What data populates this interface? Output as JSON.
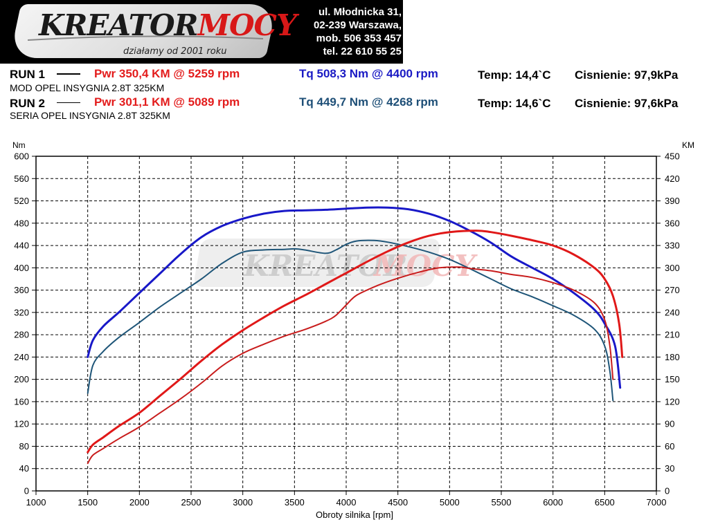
{
  "logo": {
    "brand_part1": "KREATOR",
    "brand_part2": "MOCY",
    "tagline": "działamy od 2001 roku"
  },
  "contact": {
    "line1": "ul. Młodnicka 31,",
    "line2": "02-239  Warszawa,",
    "line3": "mob.  506 353 457",
    "line4": "tel.  22 610 55 25"
  },
  "runs": [
    {
      "label": "RUN 1",
      "pwr": "Pwr  350,4 KM @ 5259 rpm",
      "tq": "Tq 508,3 Nm @ 4400 rpm",
      "temp": "Temp: 14,4`C",
      "pressure": "Cisnienie: 97,9kPa",
      "description": "MOD OPEL INSYGNIA 2.8T 325KM"
    },
    {
      "label": "RUN 2",
      "pwr": "Pwr  301,1 KM @ 5089 rpm",
      "tq": "Tq 449,7 Nm @ 4268 rpm",
      "temp": "Temp: 14,6`C",
      "pressure": "Cisnienie: 97,6kPa",
      "description": "SERIA OPEL INSYGNIA 2.8T 325KM"
    }
  ],
  "colors": {
    "run1_power": "#e01818",
    "run2_power": "#c81c1c",
    "run1_torque": "#1818c8",
    "run2_torque": "#1e5578",
    "grid": "#000000"
  },
  "chart_data": {
    "type": "line",
    "xlabel": "Obroty silnika [rpm]",
    "ylabel_left": "Nm",
    "ylabel_right": "KM",
    "xlim": [
      1000,
      7000
    ],
    "ylim_left": [
      0,
      600
    ],
    "ylim_right": [
      0,
      450
    ],
    "x_ticks": [
      1000,
      1500,
      2000,
      2500,
      3000,
      3500,
      4000,
      4500,
      5000,
      5500,
      6000,
      6500,
      7000
    ],
    "y_ticks_left": [
      0,
      40,
      80,
      120,
      160,
      200,
      240,
      280,
      320,
      360,
      400,
      440,
      480,
      520,
      560,
      600
    ],
    "y_ticks_right": [
      0,
      30,
      60,
      90,
      120,
      150,
      180,
      210,
      240,
      270,
      300,
      330,
      360,
      390,
      420,
      450
    ],
    "grid": true,
    "series": [
      {
        "name": "RUN 1",
        "axis": "left",
        "color": "#1818c8",
        "width": 3,
        "x": [
          1500,
          1550,
          1650,
          1800,
          2000,
          2200,
          2400,
          2600,
          2800,
          3000,
          3200,
          3400,
          3600,
          3800,
          4000,
          4200,
          4400,
          4600,
          4800,
          5000,
          5200,
          5400,
          5600,
          5800,
          6000,
          6200,
          6400,
          6500,
          6600,
          6650
        ],
        "y": [
          240,
          270,
          295,
          320,
          355,
          390,
          425,
          455,
          475,
          488,
          497,
          502,
          503,
          504,
          506,
          508,
          508,
          505,
          497,
          484,
          466,
          445,
          420,
          400,
          380,
          355,
          325,
          300,
          260,
          185
        ]
      },
      {
        "name": "RUN 2",
        "axis": "left",
        "color": "#1e5578",
        "width": 2,
        "x": [
          1500,
          1550,
          1650,
          1800,
          2000,
          2200,
          2400,
          2600,
          2800,
          3000,
          3200,
          3400,
          3500,
          3600,
          3800,
          3900,
          4000,
          4100,
          4268,
          4400,
          4600,
          4800,
          5000,
          5200,
          5400,
          5600,
          5800,
          6000,
          6200,
          6400,
          6500,
          6550,
          6580
        ],
        "y": [
          175,
          225,
          250,
          275,
          302,
          330,
          355,
          380,
          408,
          428,
          432,
          433,
          434,
          432,
          426,
          432,
          442,
          448,
          449,
          446,
          438,
          428,
          415,
          398,
          380,
          362,
          348,
          332,
          315,
          290,
          260,
          215,
          162
        ]
      },
      {
        "name": "RUN 1",
        "axis": "right",
        "color": "#e01818",
        "width": 3,
        "x": [
          1500,
          1550,
          1650,
          1800,
          2000,
          2200,
          2400,
          2600,
          2800,
          3000,
          3200,
          3400,
          3600,
          3800,
          4000,
          4200,
          4400,
          4600,
          4800,
          5000,
          5259,
          5400,
          5600,
          5800,
          6000,
          6200,
          6400,
          6500,
          6580,
          6640,
          6670
        ],
        "y": [
          52,
          62,
          72,
          87,
          105,
          128,
          151,
          175,
          197,
          216,
          233,
          249,
          263,
          278,
          293,
          308,
          322,
          334,
          343,
          348,
          350,
          348,
          343,
          337,
          330,
          318,
          300,
          285,
          262,
          225,
          180
        ]
      },
      {
        "name": "RUN 2",
        "axis": "right",
        "color": "#c81c1c",
        "width": 2,
        "x": [
          1500,
          1550,
          1650,
          1800,
          2000,
          2200,
          2400,
          2600,
          2800,
          3000,
          3200,
          3400,
          3600,
          3800,
          3900,
          4000,
          4100,
          4300,
          4500,
          4700,
          4900,
          5089,
          5200,
          5400,
          5600,
          5800,
          6000,
          6200,
          6400,
          6500,
          6550,
          6580
        ],
        "y": [
          37,
          48,
          57,
          70,
          86,
          105,
          124,
          145,
          168,
          185,
          197,
          208,
          217,
          228,
          236,
          250,
          263,
          276,
          286,
          294,
          300,
          301,
          299,
          296,
          291,
          287,
          280,
          270,
          253,
          230,
          195,
          150
        ]
      }
    ]
  }
}
